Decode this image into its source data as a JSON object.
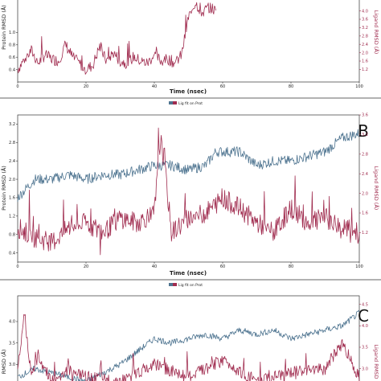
{
  "chart_data": [
    {
      "type": "line",
      "panel": "",
      "xlabel": "Time (nsec)",
      "ylabel_left": "Protein RMSD (Å)",
      "ylabel_right": "Ligand RMSD (Å)",
      "legend": [],
      "xlim": [
        0,
        100
      ],
      "xticks": [
        "0",
        "20",
        "40",
        "60",
        "80",
        "100"
      ],
      "ylim_left": [
        0.2,
        1.55
      ],
      "yticks_left": [
        "0.4",
        "0.6",
        "0.8",
        "1.0"
      ],
      "ylim_right": [
        0.6,
        4.6
      ],
      "yticks_right": [
        "1.2",
        "1.6",
        "2.0",
        "2.4",
        "2.8",
        "3.2",
        "3.6",
        "4.0"
      ],
      "series": [
        {
          "axis": "right",
          "color": "#a02c4f",
          "x": [
            0,
            2,
            4,
            6,
            8,
            10,
            12,
            14,
            16,
            18,
            20,
            22,
            24,
            26,
            28,
            30,
            32,
            34,
            36,
            38,
            40,
            42,
            44,
            46,
            48,
            50,
            52,
            54,
            56,
            58
          ],
          "y": [
            1.2,
            1.7,
            2.1,
            1.5,
            1.9,
            1.7,
            1.6,
            2.4,
            1.8,
            1.5,
            1.2,
            1.4,
            2.3,
            1.6,
            2.0,
            1.6,
            1.5,
            1.8,
            1.6,
            1.5,
            1.9,
            1.6,
            1.7,
            1.5,
            1.9,
            3.7,
            4.4,
            3.9,
            4.2,
            4.0
          ]
        }
      ]
    },
    {
      "type": "line",
      "panel": "B",
      "xlabel": "Time (nsec)",
      "ylabel_left": "Protein RMSD (Å)",
      "ylabel_right": "Ligand RMSD (Å)",
      "legend": [
        "Lig fit on Prot"
      ],
      "xlim": [
        0,
        100
      ],
      "xticks": [
        "0",
        "20",
        "40",
        "60",
        "80",
        "100"
      ],
      "ylim_left": [
        0.2,
        3.4
      ],
      "yticks_left": [
        "0.4",
        "0.8",
        "1.2",
        "1.6",
        "2.0",
        "2.4",
        "2.8",
        "3.2"
      ],
      "ylim_right": [
        0.6,
        3.6
      ],
      "yticks_right": [
        "1.2",
        "1.6",
        "2.0",
        "2.4",
        "2.8",
        "3.2",
        "3.6"
      ],
      "series": [
        {
          "axis": "left",
          "color": "#4e7490",
          "x": [
            0,
            5,
            10,
            15,
            20,
            25,
            30,
            35,
            40,
            45,
            50,
            55,
            58,
            60,
            65,
            70,
            75,
            80,
            85,
            90,
            95,
            100
          ],
          "y": [
            1.6,
            2.0,
            2.0,
            2.1,
            2.0,
            2.1,
            2.1,
            2.2,
            2.3,
            2.3,
            2.2,
            2.3,
            2.6,
            2.6,
            2.6,
            2.3,
            2.4,
            2.4,
            2.5,
            2.6,
            2.9,
            3.0
          ]
        },
        {
          "axis": "right",
          "color": "#a02c4f",
          "x": [
            0,
            5,
            10,
            15,
            20,
            25,
            30,
            35,
            40,
            42,
            45,
            50,
            55,
            60,
            65,
            70,
            75,
            80,
            85,
            90,
            95,
            100
          ],
          "y": [
            1.3,
            1.1,
            1.0,
            1.3,
            1.4,
            1.2,
            1.5,
            1.4,
            1.6,
            3.3,
            1.2,
            1.5,
            1.6,
            1.9,
            1.7,
            1.4,
            1.2,
            1.7,
            1.4,
            1.5,
            1.3,
            1.2
          ]
        }
      ]
    },
    {
      "type": "line",
      "panel": "C",
      "xlabel": "",
      "ylabel_left": "RMSD (Å)",
      "ylabel_right": "Ligand RMSD",
      "legend": [
        "Lig fit on Prot"
      ],
      "xlim": [
        0,
        100
      ],
      "xticks": [],
      "ylim_left": [
        2.5,
        4.6
      ],
      "yticks_left": [
        "3.0",
        "3.5",
        "4.0"
      ],
      "ylim_right": [
        2.6,
        4.7
      ],
      "yticks_right": [
        "3.0",
        "3.5",
        "4.0",
        "4.5"
      ],
      "series": [
        {
          "axis": "left",
          "color": "#4e7490",
          "x": [
            0,
            5,
            10,
            15,
            20,
            25,
            30,
            35,
            40,
            45,
            50,
            55,
            60,
            65,
            70,
            75,
            80,
            85,
            90,
            95,
            100
          ],
          "y": [
            2.7,
            2.9,
            2.8,
            2.7,
            2.6,
            2.8,
            3.0,
            3.3,
            3.6,
            3.5,
            3.6,
            3.7,
            3.6,
            3.8,
            3.7,
            3.8,
            3.6,
            3.7,
            3.8,
            3.9,
            4.2
          ]
        },
        {
          "axis": "right",
          "color": "#a02c4f",
          "x": [
            0,
            2,
            4,
            6,
            10,
            15,
            20,
            30,
            40,
            50,
            60,
            70,
            80,
            90,
            95,
            100
          ],
          "y": [
            2.9,
            4.3,
            2.8,
            3.3,
            2.7,
            3.0,
            2.8,
            2.7,
            3.1,
            2.8,
            3.2,
            2.7,
            2.9,
            3.0,
            3.6,
            2.8
          ]
        }
      ]
    }
  ]
}
